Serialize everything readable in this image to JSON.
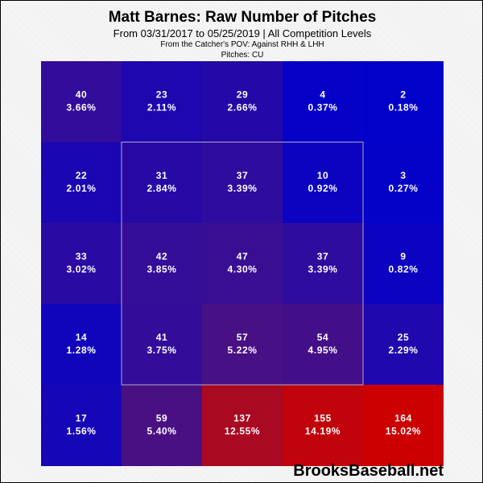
{
  "chart_data": {
    "type": "heatmap",
    "title": "Matt Barnes: Raw Number of Pitches",
    "subtitle": "From 03/31/2017 to 05/25/2019 | All Competition Levels",
    "subtitle2": "From the Catcher's POV:   Against RHH & LHH",
    "subtitle3": "Pitches:  CU",
    "rows": [
      [
        {
          "count": "40",
          "pct": "3.66%"
        },
        {
          "count": "23",
          "pct": "2.11%"
        },
        {
          "count": "29",
          "pct": "2.66%"
        },
        {
          "count": "4",
          "pct": "0.37%"
        },
        {
          "count": "2",
          "pct": "0.18%"
        }
      ],
      [
        {
          "count": "22",
          "pct": "2.01%"
        },
        {
          "count": "31",
          "pct": "2.84%"
        },
        {
          "count": "37",
          "pct": "3.39%"
        },
        {
          "count": "10",
          "pct": "0.92%"
        },
        {
          "count": "3",
          "pct": "0.27%"
        }
      ],
      [
        {
          "count": "33",
          "pct": "3.02%"
        },
        {
          "count": "42",
          "pct": "3.85%"
        },
        {
          "count": "47",
          "pct": "4.30%"
        },
        {
          "count": "37",
          "pct": "3.39%"
        },
        {
          "count": "9",
          "pct": "0.82%"
        }
      ],
      [
        {
          "count": "14",
          "pct": "1.28%"
        },
        {
          "count": "41",
          "pct": "3.75%"
        },
        {
          "count": "57",
          "pct": "5.22%"
        },
        {
          "count": "54",
          "pct": "4.95%"
        },
        {
          "count": "25",
          "pct": "2.29%"
        }
      ],
      [
        {
          "count": "17",
          "pct": "1.56%"
        },
        {
          "count": "59",
          "pct": "5.40%"
        },
        {
          "count": "137",
          "pct": "12.55%"
        },
        {
          "count": "155",
          "pct": "14.19%"
        },
        {
          "count": "164",
          "pct": "15.02%"
        }
      ]
    ],
    "color_low": "#0000cc",
    "color_high": "#cc0000",
    "strike_zone": "inner 3x3 cells",
    "grid": false
  },
  "watermark": "BrooksBaseball.net"
}
